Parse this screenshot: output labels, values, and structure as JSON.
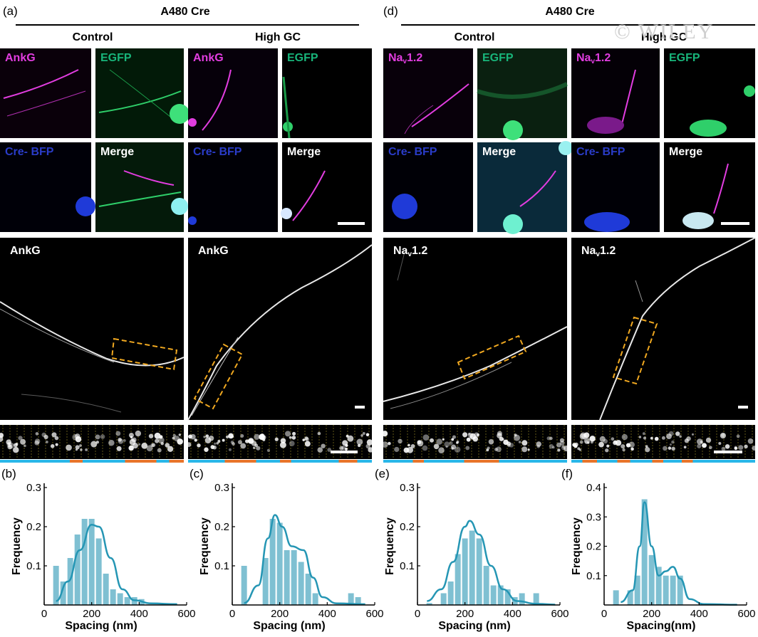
{
  "left_section": {
    "panel_label": "(a)",
    "header": "A480 Cre",
    "groups": [
      {
        "label": "Control"
      },
      {
        "label": "High GC"
      }
    ],
    "tiles": [
      {
        "text": "AnkG",
        "color": "#e23de0"
      },
      {
        "text": "EGFP",
        "color": "#18b57a"
      },
      {
        "text": "AnkG",
        "color": "#e23de0"
      },
      {
        "text": "EGFP",
        "color": "#18b57a"
      },
      {
        "text": "Cre- BFP",
        "color": "#2a3cc8"
      },
      {
        "text": "Merge",
        "color": "#ffffff"
      },
      {
        "text": "Cre- BFP",
        "color": "#2a3cc8"
      },
      {
        "text": "Merge",
        "color": "#ffffff"
      }
    ],
    "superres": [
      {
        "text": "AnkG"
      },
      {
        "text": "AnkG"
      }
    ]
  },
  "right_section": {
    "panel_label": "(d)",
    "header": "A480 Cre",
    "groups": [
      {
        "label": "Control"
      },
      {
        "label": "High GC"
      }
    ],
    "tiles": [
      {
        "text": "Na",
        "sub": "v",
        "tail": "1.2",
        "color": "#e23de0"
      },
      {
        "text": "EGFP",
        "color": "#18b57a"
      },
      {
        "text": "Na",
        "sub": "v",
        "tail": "1.2",
        "color": "#e23de0"
      },
      {
        "text": "EGFP",
        "color": "#18b57a"
      },
      {
        "text": "Cre- BFP",
        "color": "#2a3cc8"
      },
      {
        "text": "Merge",
        "color": "#ffffff"
      },
      {
        "text": "Cre- BFP",
        "color": "#2a3cc8"
      },
      {
        "text": "Merge",
        "color": "#ffffff"
      }
    ],
    "superres": [
      {
        "text": "Na",
        "sub": "v",
        "tail": "1.2"
      },
      {
        "text": "Na",
        "sub": "v",
        "tail": "1.2"
      }
    ]
  },
  "watermark": "© WILEY",
  "colors": {
    "bar_fill": "#7fc0d2",
    "curve": "#2596b4",
    "strip_blue": "#29b6e8",
    "strip_orange": "#e8742a",
    "box": "#f0a820"
  },
  "chart_data": [
    {
      "panel_label": "(b)",
      "type": "bar",
      "xlabel": "Spacing (nm)",
      "ylabel": "Frequency",
      "xlim": [
        0,
        600
      ],
      "ylim": [
        0,
        0.3
      ],
      "xticks": [
        "0",
        "200",
        "400",
        "600"
      ],
      "yticks": [
        "0.1",
        "0.2",
        "0.3"
      ],
      "bin_centers": [
        50,
        80,
        110,
        140,
        170,
        200,
        230,
        260,
        290,
        320,
        350,
        380,
        410
      ],
      "values": [
        0.1,
        0.06,
        0.12,
        0.18,
        0.22,
        0.22,
        0.17,
        0.08,
        0.04,
        0.03,
        0.02,
        0.02,
        0.015
      ],
      "fit": [
        [
          50,
          0.01
        ],
        [
          100,
          0.06
        ],
        [
          150,
          0.14
        ],
        [
          200,
          0.205
        ],
        [
          230,
          0.2
        ],
        [
          280,
          0.12
        ],
        [
          330,
          0.04
        ],
        [
          380,
          0.012
        ],
        [
          450,
          0.004
        ],
        [
          560,
          0.002
        ]
      ]
    },
    {
      "panel_label": "(c)",
      "type": "bar",
      "xlabel": "Spacing (nm)",
      "ylabel": "Frequency",
      "xlim": [
        0,
        600
      ],
      "ylim": [
        0,
        0.3
      ],
      "xticks": [
        "0",
        "200",
        "400",
        "600"
      ],
      "yticks": [
        "0.1",
        "0.2",
        "0.3"
      ],
      "bin_centers": [
        50,
        140,
        170,
        200,
        230,
        260,
        290,
        320,
        350,
        500,
        530
      ],
      "values": [
        0.1,
        0.12,
        0.22,
        0.21,
        0.14,
        0.14,
        0.11,
        0.08,
        0.03,
        0.03,
        0.02
      ],
      "fit": [
        [
          50,
          0.005
        ],
        [
          110,
          0.05
        ],
        [
          150,
          0.17
        ],
        [
          180,
          0.23
        ],
        [
          210,
          0.2
        ],
        [
          250,
          0.15
        ],
        [
          300,
          0.14
        ],
        [
          340,
          0.07
        ],
        [
          380,
          0.02
        ],
        [
          440,
          0.004
        ],
        [
          560,
          0.002
        ]
      ]
    },
    {
      "panel_label": "(e)",
      "type": "bar",
      "xlabel": "Spacing (nm)",
      "ylabel": "Frequency",
      "xlim": [
        0,
        600
      ],
      "ylim": [
        0,
        0.3
      ],
      "xticks": [
        "0",
        "200",
        "400",
        "600"
      ],
      "yticks": [
        "0.1",
        "0.2",
        "0.3"
      ],
      "bin_centers": [
        50,
        110,
        140,
        170,
        200,
        230,
        260,
        290,
        320,
        350,
        380,
        410,
        440,
        500
      ],
      "values": [
        0.005,
        0.03,
        0.06,
        0.13,
        0.17,
        0.19,
        0.17,
        0.1,
        0.05,
        0.05,
        0.04,
        0.02,
        0.03,
        0.03
      ],
      "fit": [
        [
          40,
          0.01
        ],
        [
          100,
          0.04
        ],
        [
          150,
          0.11
        ],
        [
          200,
          0.2
        ],
        [
          220,
          0.215
        ],
        [
          260,
          0.18
        ],
        [
          310,
          0.1
        ],
        [
          360,
          0.04
        ],
        [
          420,
          0.01
        ],
        [
          500,
          0.003
        ],
        [
          580,
          0.001
        ]
      ]
    },
    {
      "panel_label": "(f)",
      "type": "bar",
      "xlabel": "Spacing(nm)",
      "ylabel": "Frequency",
      "xlim": [
        0,
        600
      ],
      "ylim": [
        0,
        0.4
      ],
      "xticks": [
        "0",
        "200",
        "400",
        "600"
      ],
      "yticks": [
        "0.1",
        "0.2",
        "0.3",
        "0.4"
      ],
      "bin_centers": [
        50,
        110,
        140,
        170,
        200,
        230,
        260,
        290,
        320
      ],
      "values": [
        0.05,
        0.05,
        0.1,
        0.36,
        0.17,
        0.13,
        0.1,
        0.1,
        0.1
      ],
      "fit": [
        [
          70,
          0.01
        ],
        [
          120,
          0.05
        ],
        [
          150,
          0.2
        ],
        [
          170,
          0.35
        ],
        [
          200,
          0.2
        ],
        [
          230,
          0.1
        ],
        [
          260,
          0.115
        ],
        [
          290,
          0.13
        ],
        [
          320,
          0.09
        ],
        [
          360,
          0.02
        ],
        [
          420,
          0.003
        ],
        [
          560,
          0.001
        ]
      ]
    }
  ]
}
